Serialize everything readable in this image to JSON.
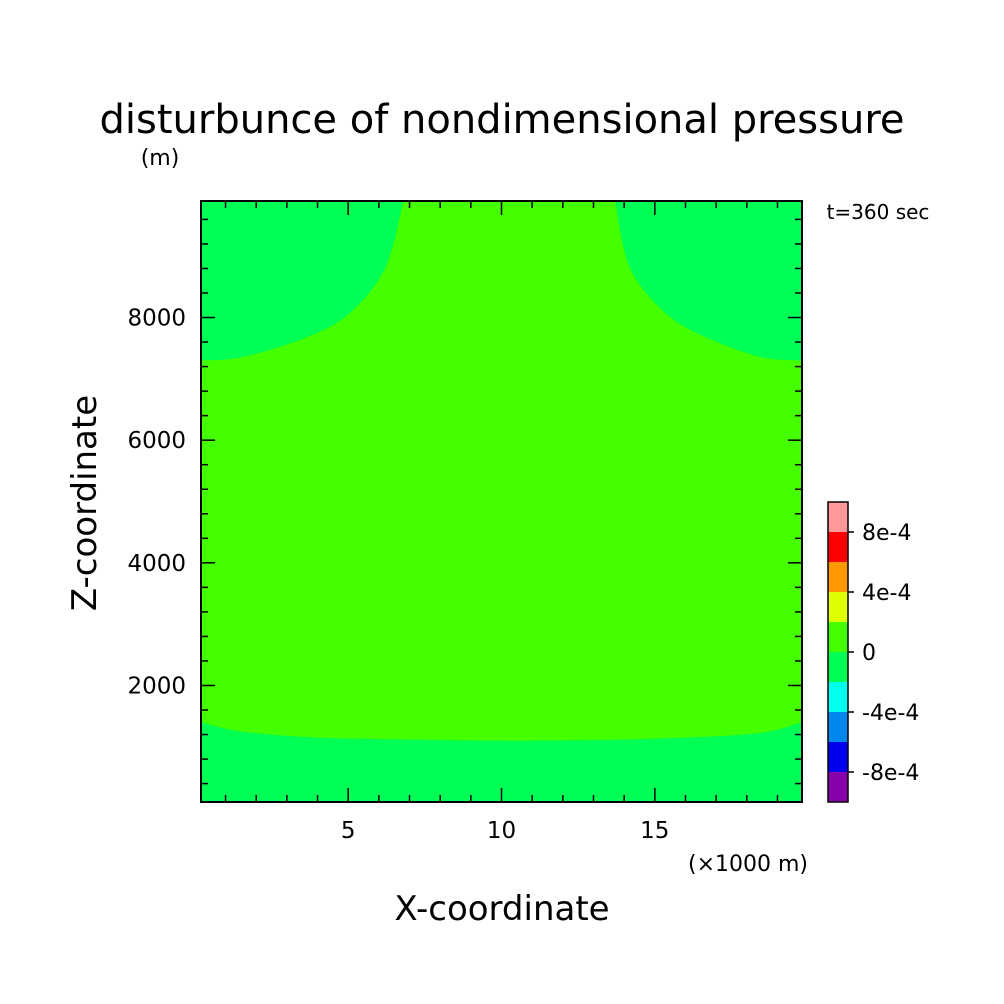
{
  "chart_data": {
    "type": "contour",
    "title": "disturbunce of nondimensional pressure",
    "unit_label": "(m)",
    "time_label": "t=360 sec",
    "xlabel": "X-coordinate",
    "ylabel": "Z-coordinate",
    "x_unit_label": "(×1000 m)",
    "xlim": [
      0.2,
      19.8
    ],
    "ylim": [
      100,
      9900
    ],
    "x_ticks": [
      5,
      10,
      15
    ],
    "x_tick_labels": [
      "5",
      "10",
      "15"
    ],
    "y_ticks": [
      2000,
      4000,
      6000,
      8000
    ],
    "y_tick_labels": [
      "2000",
      "4000",
      "6000",
      "8000"
    ],
    "x_minor_step": 1,
    "y_minor_step": 400,
    "fields": [
      {
        "fill": "#00ff55",
        "note": "lower band near surface",
        "boundary": [
          [
            0.2,
            1400
          ],
          [
            1.5,
            1250
          ],
          [
            4,
            1150
          ],
          [
            7,
            1120
          ],
          [
            10,
            1100
          ],
          [
            13,
            1110
          ],
          [
            16,
            1150
          ],
          [
            18.5,
            1230
          ],
          [
            19.8,
            1400
          ]
        ]
      },
      {
        "fill": "#00ff55",
        "note": "upper-left corner region",
        "boundary": [
          [
            0.2,
            7300
          ],
          [
            1.5,
            7350
          ],
          [
            3.5,
            7650
          ],
          [
            5,
            8050
          ],
          [
            6.2,
            8800
          ],
          [
            6.8,
            9900
          ]
        ]
      },
      {
        "fill": "#00ff55",
        "note": "upper-right corner region",
        "boundary": [
          [
            13.7,
            9900
          ],
          [
            14.2,
            8800
          ],
          [
            15.4,
            8050
          ],
          [
            16.8,
            7650
          ],
          [
            18.5,
            7350
          ],
          [
            19.8,
            7300
          ]
        ]
      }
    ],
    "background_fill": "#44ff00",
    "colorbar": {
      "levels": [
        -0.001,
        -0.0008,
        -0.0006,
        -0.0004,
        -0.0002,
        0,
        0.0002,
        0.0004,
        0.0006,
        0.0008,
        0.001
      ],
      "colors": [
        "#8800aa",
        "#0000ee",
        "#0088ee",
        "#00ffee",
        "#00ff55",
        "#44ff00",
        "#ddff00",
        "#ff9900",
        "#ff0000",
        "#ff9999"
      ],
      "tick_labels": [
        "8e-4",
        "4e-4",
        "0",
        "-4e-4",
        "-8e-4"
      ],
      "tick_values": [
        0.0008,
        0.0004,
        0,
        -0.0004,
        -0.0008
      ]
    }
  }
}
